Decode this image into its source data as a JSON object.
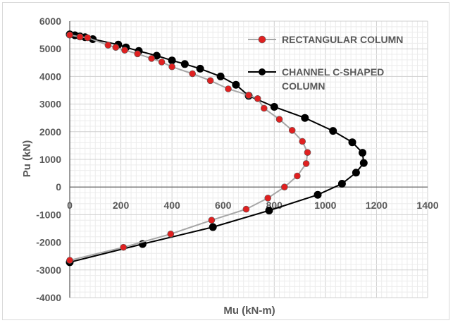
{
  "chart_data": {
    "type": "scatter",
    "title": "",
    "xlabel": "Mu (kN-m)",
    "ylabel": "Pu (kN)",
    "xlim": [
      0,
      1400
    ],
    "ylim": [
      -4000,
      6000
    ],
    "xticks": [
      "0",
      "200",
      "400",
      "600",
      "800",
      "1000",
      "1200",
      "1400"
    ],
    "yticks": [
      "-4000",
      "-3000",
      "-2000",
      "-1000",
      "0",
      "1000",
      "2000",
      "3000",
      "4000",
      "5000",
      "6000"
    ],
    "grid": "major and minor",
    "legend_position": "top-right",
    "series": [
      {
        "name": "RECTANGULAR COLUMN",
        "line_color": "#a6a6a6",
        "marker_fill": "#e02020",
        "marker_edge": "#595959",
        "points": [
          [
            0,
            5500
          ],
          [
            40,
            5430
          ],
          [
            70,
            5400
          ],
          [
            150,
            5130
          ],
          [
            180,
            5050
          ],
          [
            215,
            4950
          ],
          [
            265,
            4820
          ],
          [
            320,
            4650
          ],
          [
            360,
            4520
          ],
          [
            400,
            4350
          ],
          [
            480,
            4100
          ],
          [
            550,
            3850
          ],
          [
            620,
            3550
          ],
          [
            700,
            3320
          ],
          [
            735,
            3200
          ],
          [
            760,
            2850
          ],
          [
            820,
            2450
          ],
          [
            870,
            2050
          ],
          [
            910,
            1650
          ],
          [
            930,
            1250
          ],
          [
            925,
            850
          ],
          [
            890,
            400
          ],
          [
            840,
            0
          ],
          [
            775,
            -400
          ],
          [
            690,
            -800
          ],
          [
            555,
            -1200
          ],
          [
            395,
            -1700
          ],
          [
            210,
            -2180
          ],
          [
            0,
            -2650
          ]
        ]
      },
      {
        "name": "CHANNEL C-SHAPED COLUMN",
        "line_color": "#000000",
        "marker_fill": "#000000",
        "marker_edge": "#000000",
        "points": [
          [
            0,
            5520
          ],
          [
            20,
            5490
          ],
          [
            40,
            5450
          ],
          [
            60,
            5420
          ],
          [
            90,
            5350
          ],
          [
            190,
            5150
          ],
          [
            220,
            5050
          ],
          [
            270,
            4920
          ],
          [
            340,
            4750
          ],
          [
            400,
            4580
          ],
          [
            450,
            4450
          ],
          [
            510,
            4280
          ],
          [
            590,
            4000
          ],
          [
            650,
            3700
          ],
          [
            700,
            3300
          ],
          [
            800,
            2900
          ],
          [
            920,
            2500
          ],
          [
            1030,
            2030
          ],
          [
            1105,
            1620
          ],
          [
            1145,
            1240
          ],
          [
            1150,
            870
          ],
          [
            1120,
            520
          ],
          [
            1065,
            120
          ],
          [
            970,
            -280
          ],
          [
            780,
            -850
          ],
          [
            560,
            -1450
          ],
          [
            285,
            -2060
          ],
          [
            0,
            -2720
          ]
        ]
      }
    ]
  }
}
